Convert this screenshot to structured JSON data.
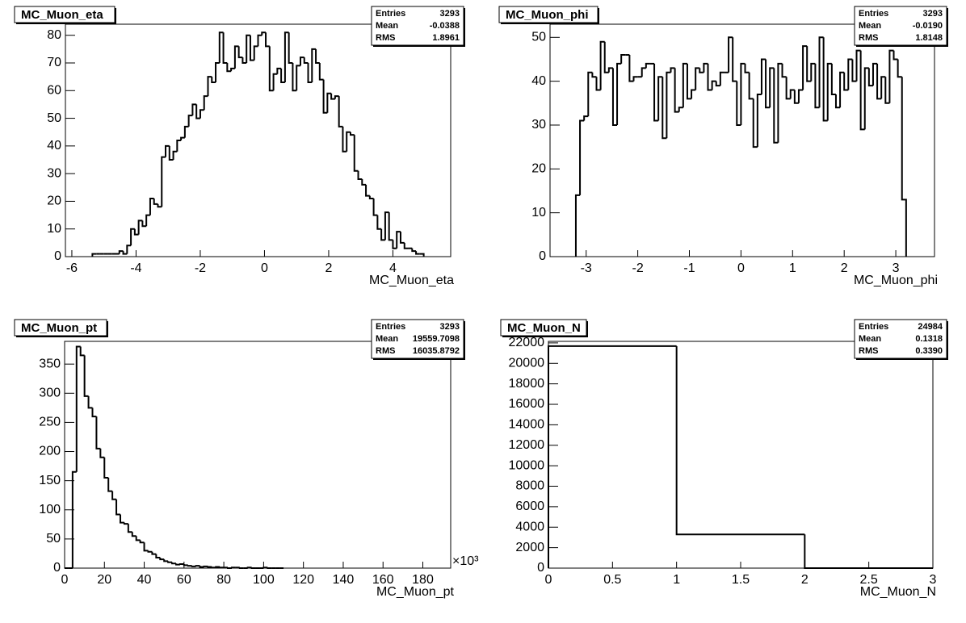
{
  "chart_data": [
    {
      "type": "histogram",
      "title": "MC_Muon_eta",
      "x_label": "MC_Muon_eta",
      "color": "#000000",
      "grid": false,
      "stats": [
        {
          "label": "Entries",
          "value": "3293"
        },
        {
          "label": "Mean",
          "value": "-0.0388"
        },
        {
          "label": "RMS",
          "value": "1.8961"
        }
      ],
      "bins": [
        -5.36,
        -5.24,
        -5.12,
        -5.0,
        -4.88,
        -4.76,
        -4.64,
        -4.52,
        -4.4,
        -4.28,
        -4.16,
        -4.04,
        -3.92,
        -3.8,
        -3.68,
        -3.56,
        -3.44,
        -3.32,
        -3.2,
        -3.08,
        -2.96,
        -2.84,
        -2.72,
        -2.6,
        -2.48,
        -2.36,
        -2.24,
        -2.12,
        -2.0,
        -1.88,
        -1.76,
        -1.64,
        -1.52,
        -1.4,
        -1.28,
        -1.16,
        -1.04,
        -0.92,
        -0.8,
        -0.68,
        -0.56,
        -0.44,
        -0.32,
        -0.2,
        -0.08,
        0.04,
        0.16,
        0.28,
        0.4,
        0.52,
        0.64,
        0.76,
        0.88,
        1.0,
        1.12,
        1.24,
        1.36,
        1.48,
        1.6,
        1.72,
        1.84,
        1.96,
        2.08,
        2.2,
        2.32,
        2.44,
        2.56,
        2.68,
        2.8,
        2.92,
        3.04,
        3.16,
        3.28,
        3.4,
        3.52,
        3.64,
        3.76,
        3.88,
        4.0,
        4.12,
        4.24,
        4.36,
        4.48,
        4.6,
        4.72,
        4.84,
        4.96
      ],
      "values": [
        1,
        1,
        1,
        1,
        1,
        1,
        1,
        2,
        1,
        4,
        10,
        8,
        13,
        11,
        15,
        21,
        19,
        18,
        36,
        40,
        35,
        38,
        42,
        43,
        47,
        51,
        55,
        50,
        53,
        58,
        65,
        63,
        70,
        81,
        70,
        67,
        68,
        76,
        72,
        70,
        80,
        71,
        76,
        80,
        81,
        76,
        60,
        66,
        68,
        63,
        81,
        70,
        60,
        69,
        72,
        70,
        63,
        75,
        70,
        64,
        52,
        59,
        57,
        58,
        47,
        38,
        45,
        44,
        31,
        28,
        26,
        22,
        21,
        15,
        10,
        6,
        16,
        6,
        3,
        9,
        5,
        3,
        3,
        2,
        1,
        1
      ],
      "xlim": [
        -6.2,
        5.8
      ],
      "xticks": [
        -6,
        -4,
        -2,
        0,
        2,
        4
      ],
      "ylim": [
        0,
        84
      ],
      "yticks": [
        0,
        10,
        20,
        30,
        40,
        50,
        60,
        70,
        80
      ]
    },
    {
      "type": "histogram",
      "title": "MC_Muon_phi",
      "x_label": "MC_Muon_phi",
      "color": "#000000",
      "grid": false,
      "stats": [
        {
          "label": "Entries",
          "value": "3293"
        },
        {
          "label": "Mean",
          "value": "-0.0190"
        },
        {
          "label": "RMS",
          "value": "1.8148"
        }
      ],
      "bins": [
        -3.2,
        -3.12,
        -3.04,
        -2.96,
        -2.88,
        -2.8,
        -2.72,
        -2.64,
        -2.56,
        -2.48,
        -2.4,
        -2.32,
        -2.24,
        -2.16,
        -2.08,
        -2.0,
        -1.92,
        -1.84,
        -1.76,
        -1.68,
        -1.6,
        -1.52,
        -1.44,
        -1.36,
        -1.28,
        -1.2,
        -1.12,
        -1.04,
        -0.96,
        -0.88,
        -0.8,
        -0.72,
        -0.64,
        -0.56,
        -0.48,
        -0.4,
        -0.32,
        -0.24,
        -0.16,
        -0.08,
        0,
        0.08,
        0.16,
        0.24,
        0.32,
        0.4,
        0.48,
        0.56,
        0.64,
        0.72,
        0.8,
        0.88,
        0.96,
        1.04,
        1.12,
        1.2,
        1.28,
        1.36,
        1.44,
        1.52,
        1.6,
        1.68,
        1.76,
        1.84,
        1.92,
        2.0,
        2.08,
        2.16,
        2.24,
        2.32,
        2.4,
        2.48,
        2.56,
        2.64,
        2.72,
        2.8,
        2.88,
        2.96,
        3.04,
        3.12,
        3.2
      ],
      "values": [
        14,
        31,
        32,
        42,
        41,
        38,
        49,
        42,
        43,
        30,
        44,
        46,
        46,
        40,
        41,
        41,
        43,
        44,
        44,
        31,
        41,
        27,
        42,
        43,
        33,
        34,
        44,
        36,
        38,
        43,
        42,
        44,
        38,
        40,
        39,
        42,
        42,
        50,
        40,
        30,
        44,
        42,
        36,
        25,
        37,
        45,
        34,
        43,
        26,
        44,
        41,
        36,
        38,
        35,
        38,
        48,
        40,
        44,
        34,
        50,
        31,
        44,
        37,
        34,
        42,
        38,
        45,
        40,
        47,
        29,
        43,
        39,
        44,
        36,
        41,
        35,
        47,
        45,
        41,
        13
      ],
      "xlim": [
        -3.7,
        3.75
      ],
      "xticks": [
        -3,
        -2,
        -1,
        0,
        1,
        2,
        3
      ],
      "ylim": [
        0,
        53
      ],
      "yticks": [
        0,
        10,
        20,
        30,
        40,
        50
      ]
    },
    {
      "type": "histogram",
      "title": "MC_Muon_pt",
      "x_label": "MC_Muon_pt",
      "x_multiplier": "×10³",
      "color": "#000000",
      "grid": false,
      "stats": [
        {
          "label": "Entries",
          "value": "3293"
        },
        {
          "label": "Mean",
          "value": "19559.7098"
        },
        {
          "label": "RMS",
          "value": "16035.8792"
        }
      ],
      "bins": [
        0,
        2,
        4,
        6,
        8,
        10,
        12,
        14,
        16,
        18,
        20,
        22,
        24,
        26,
        28,
        30,
        32,
        34,
        36,
        38,
        40,
        42,
        44,
        46,
        48,
        50,
        52,
        54,
        56,
        58,
        60,
        62,
        64,
        66,
        68,
        70,
        72,
        74,
        76,
        78,
        80,
        82,
        84,
        86,
        88,
        90,
        92,
        94,
        96,
        98,
        100,
        102,
        104,
        106,
        108,
        110
      ],
      "values": [
        0,
        0,
        165,
        380,
        365,
        295,
        275,
        260,
        205,
        190,
        155,
        132,
        118,
        92,
        78,
        76,
        62,
        55,
        48,
        44,
        30,
        28,
        24,
        18,
        15,
        12,
        10,
        8,
        6,
        7,
        5,
        4,
        3,
        4,
        2,
        3,
        2,
        1,
        2,
        1,
        1,
        0,
        1,
        1,
        0,
        0,
        1,
        0,
        0,
        0,
        1,
        0,
        0,
        0,
        0
      ],
      "xlim": [
        0,
        194
      ],
      "xticks": [
        0,
        20,
        40,
        60,
        80,
        100,
        120,
        140,
        160,
        180
      ],
      "ylim": [
        0,
        389
      ],
      "yticks": [
        0,
        50,
        100,
        150,
        200,
        250,
        300,
        350
      ]
    },
    {
      "type": "histogram",
      "title": "MC_Muon_N",
      "x_label": "MC_Muon_N",
      "color": "#000000",
      "grid": false,
      "stats": [
        {
          "label": "Entries",
          "value": "24984"
        },
        {
          "label": "Mean",
          "value": "0.1318"
        },
        {
          "label": "RMS",
          "value": "0.3390"
        }
      ],
      "bins": [
        0,
        1,
        2,
        3
      ],
      "values": [
        21691,
        3293,
        0
      ],
      "xlim": [
        0,
        3
      ],
      "xticks": [
        0,
        0.5,
        1,
        1.5,
        2,
        2.5,
        3
      ],
      "ylim": [
        0,
        22150
      ],
      "yticks": [
        0,
        2000,
        4000,
        6000,
        8000,
        10000,
        12000,
        14000,
        16000,
        18000,
        20000,
        22000
      ]
    }
  ]
}
